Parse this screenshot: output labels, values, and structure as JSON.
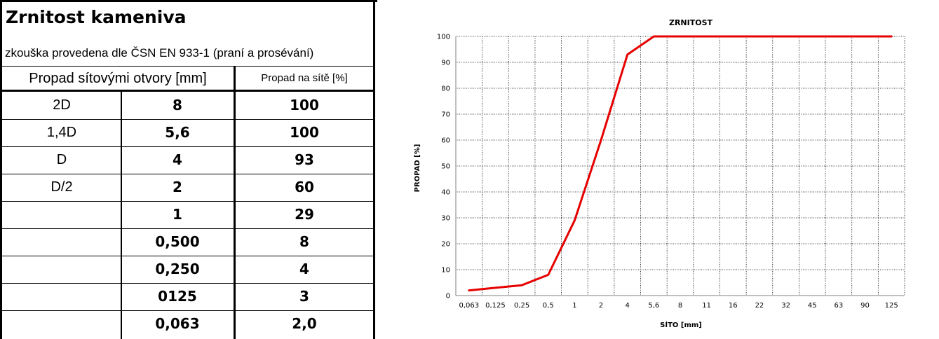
{
  "table": {
    "title": "Zrnitost kameniva",
    "subtitle": "zkouška provedena dle ČSN EN 933-1 (praní a prosévání)",
    "header_sieve": "Propad sítovými otvory [mm]",
    "header_pass": "Propad na sítě [%]",
    "rows": [
      {
        "label": "2D",
        "sieve": "8",
        "pass": "100"
      },
      {
        "label": "1,4D",
        "sieve": "5,6",
        "pass": "100"
      },
      {
        "label": "D",
        "sieve": "4",
        "pass": "93"
      },
      {
        "label": "D/2",
        "sieve": "2",
        "pass": "60"
      },
      {
        "label": "",
        "sieve": "1",
        "pass": "29"
      },
      {
        "label": "",
        "sieve": "0,500",
        "pass": "8"
      },
      {
        "label": "",
        "sieve": "0,250",
        "pass": "4"
      },
      {
        "label": "",
        "sieve": "0125",
        "pass": "3"
      },
      {
        "label": "",
        "sieve": "0,063",
        "pass": "2,0"
      }
    ]
  },
  "chart_data": {
    "type": "line",
    "title": "ZRNITOST",
    "xlabel": "SÍTO [mm]",
    "ylabel": "PROPAD [%]",
    "x_categories": [
      "0,063",
      "0,125",
      "0,25",
      "0,5",
      "1",
      "2",
      "4",
      "5,6",
      "8",
      "11",
      "16",
      "22",
      "32",
      "45",
      "63",
      "90",
      "125"
    ],
    "y_ticks": [
      "0",
      "10",
      "20",
      "30",
      "40",
      "50",
      "60",
      "70",
      "80",
      "90",
      "100"
    ],
    "ylim": [
      0,
      100
    ],
    "grid": true,
    "line_color": "#e60000",
    "series": [
      {
        "points": [
          {
            "x": "0,063",
            "y": 2
          },
          {
            "x": "0,125",
            "y": 3
          },
          {
            "x": "0,25",
            "y": 4
          },
          {
            "x": "0,5",
            "y": 8
          },
          {
            "x": "1",
            "y": 29
          },
          {
            "x": "2",
            "y": 60
          },
          {
            "x": "4",
            "y": 93
          },
          {
            "x": "5,6",
            "y": 100
          },
          {
            "x": "8",
            "y": 100
          },
          {
            "x": "11",
            "y": 100
          },
          {
            "x": "16",
            "y": 100
          },
          {
            "x": "22",
            "y": 100
          },
          {
            "x": "32",
            "y": 100
          },
          {
            "x": "45",
            "y": 100
          },
          {
            "x": "63",
            "y": 100
          },
          {
            "x": "90",
            "y": 100
          },
          {
            "x": "125",
            "y": 100
          }
        ]
      }
    ]
  }
}
